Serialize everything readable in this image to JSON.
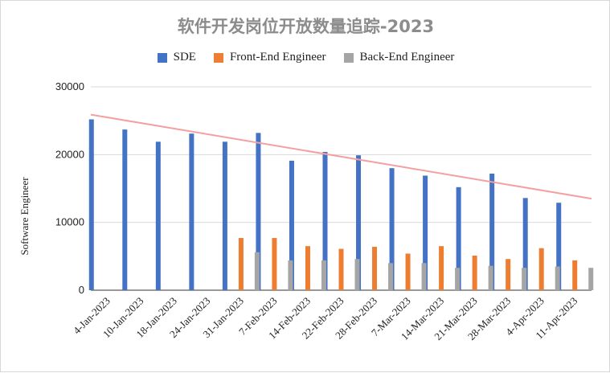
{
  "chart_data": {
    "type": "bar",
    "title": "软件开发岗位开放数量追踪-2023",
    "xlabel": "",
    "ylabel": "Software Engineer",
    "ylim": [
      0,
      30000
    ],
    "yticks": [
      0,
      10000,
      20000,
      30000
    ],
    "ytick_labels": [
      "0",
      "10000",
      "20000",
      "30000"
    ],
    "categories": [
      "4-Jan-2023",
      "10-Jan-2023",
      "18-Jan-2023",
      "24-Jan-2023",
      "31-Jan-2023",
      "7-Feb-2023",
      "14-Feb-2023",
      "22-Feb-2023",
      "28-Feb-2023",
      "7-Mar-2023",
      "14-Mar-2023",
      "21-Mar-2023",
      "28-Mar-2023",
      "4-Apr-2023",
      "11-Apr-2023"
    ],
    "series": [
      {
        "name": "SDE",
        "color": "#4472c4",
        "values": [
          25200,
          23700,
          21900,
          23100,
          21900,
          23200,
          19100,
          20400,
          19900,
          18000,
          16900,
          15200,
          17200,
          13600,
          12900
        ]
      },
      {
        "name": "Front-End Engineer",
        "color": "#ed7d31",
        "values": [
          null,
          null,
          null,
          null,
          7700,
          7700,
          6500,
          6100,
          6400,
          5400,
          6500,
          5100,
          4600,
          6200,
          4400
        ]
      },
      {
        "name": "Back-End Engineer",
        "color": "#a5a5a5",
        "values": [
          null,
          null,
          null,
          null,
          5600,
          4400,
          4400,
          4600,
          4000,
          4000,
          3300,
          3600,
          3300,
          3500,
          3300
        ]
      }
    ],
    "trendline": {
      "color": "#f4a0a0",
      "start": 25900,
      "end": 13500
    },
    "grid": true,
    "legend": "top"
  }
}
